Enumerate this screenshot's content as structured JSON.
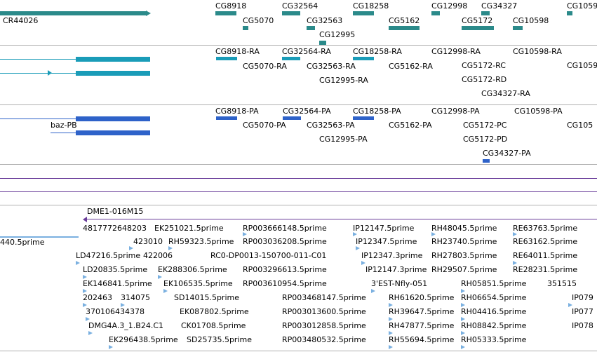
{
  "colors": {
    "gene": "#2b8a8a",
    "transcript": "#1a9cb8",
    "protein": "#2e62c9",
    "est": "#7ab0e0",
    "scaffold": "#6a3d9a"
  },
  "genes": {
    "labels": [
      "CR44026",
      "CG8918",
      "CG5070",
      "CG32564",
      "CG32563",
      "CG12995",
      "CG18258",
      "CG5162",
      "CG12998",
      "CG5172",
      "CG34327",
      "CG10598",
      "CG1059"
    ]
  },
  "transcripts": {
    "labels": [
      "CG8918-RA",
      "CG5070-RA",
      "CG32564-RA",
      "CG32563-RA",
      "CG12995-RA",
      "CG18258-RA",
      "CG5162-RA",
      "CG12998-RA",
      "CG5172-RC",
      "CG5172-RD",
      "CG34327-RA",
      "CG10598-RA",
      "CG1059"
    ]
  },
  "proteins": {
    "labels": [
      "baz-PB",
      "CG8918-PA",
      "CG5070-PA",
      "CG32564-PA",
      "CG32563-PA",
      "CG12995-PA",
      "CG18258-PA",
      "CG5162-PA",
      "CG12998-PA",
      "CG5172-PC",
      "CG5172-PD",
      "CG34327-PA",
      "CG10598-PA",
      "CG105"
    ]
  },
  "scaffold": {
    "label": "DME1-016M15"
  },
  "ests": {
    "labels": [
      "440.5prime",
      "4817772648203",
      "EK251021.5prime",
      "RP003666148.5prime",
      "IP12147.5prime",
      "RH48045.5prime",
      "RE63763.5prime",
      "423010",
      "RH59323.5prime",
      "RP003036208.5prime",
      "IP12347.5prime",
      "RH23740.5prime",
      "RE63162.5prime",
      "LD47216.5prime",
      "422006",
      "RC0-DP0013-150700-011-C01",
      "IP12347.3prime",
      "RH27803.5prime",
      "RE64011.5prime",
      "LD20835.5prime",
      "EK288306.5prime",
      "RP003296613.5prime",
      "IP12147.3prime",
      "RH29507.5prime",
      "RE28231.5prime",
      "EK146841.5prime",
      "EK106535.5prime",
      "RP003610954.5prime",
      "3'EST-Nfly-051",
      "RH05851.5prime",
      "351515",
      "202463",
      "314075",
      "SD14015.5prime",
      "RP003468147.5prime",
      "RH61620.5prime",
      "RH06654.5prime",
      "IP079",
      "370106434378",
      "EK087802.5prime",
      "RP003013600.5prime",
      "RH39647.5prime",
      "RH04416.5prime",
      "IP077",
      "DMG4A.3_1.B24.C1",
      "CK01708.5prime",
      "RP003012858.5prime",
      "RH47877.5prime",
      "RH08842.5prime",
      "IP078",
      "EK296438.5prime",
      "SD25735.5prime",
      "RP003480532.5prime",
      "RH55694.5prime",
      "RH05333.5prime"
    ]
  }
}
